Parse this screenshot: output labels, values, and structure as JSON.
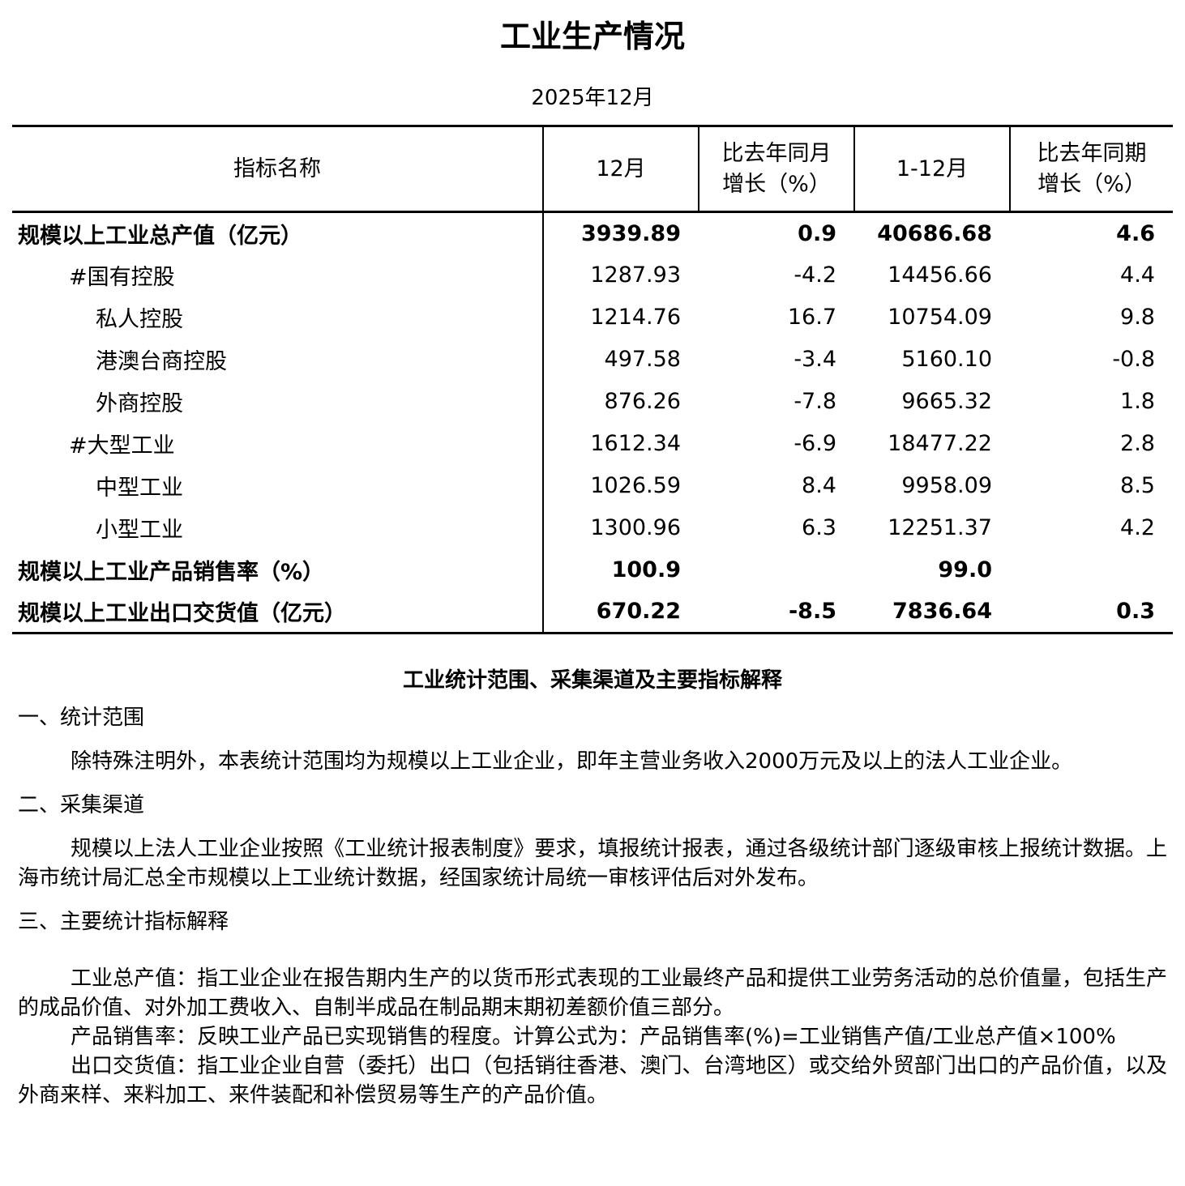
{
  "title": "工业生产情况",
  "subtitle": "2025年12月",
  "table": {
    "headers": [
      "指标名称",
      "12月",
      "比去年同月增长（%）",
      "1-12月",
      "比去年同期增长（%）"
    ],
    "header_lines": {
      "c2a": "比去年同月",
      "c2b": "增长（%）",
      "c4a": "比去年同期",
      "c4b": "增长（%）"
    },
    "rows": [
      {
        "name": "规模以上工业总产值（亿元）",
        "month": "3939.89",
        "month_growth": "0.9",
        "ytd": "40686.68",
        "ytd_growth": "4.6"
      },
      {
        "name": "#国有控股",
        "month": "1287.93",
        "month_growth": "-4.2",
        "ytd": "14456.66",
        "ytd_growth": "4.4"
      },
      {
        "name": "私人控股",
        "month": "1214.76",
        "month_growth": "16.7",
        "ytd": "10754.09",
        "ytd_growth": "9.8"
      },
      {
        "name": "港澳台商控股",
        "month": "497.58",
        "month_growth": "-3.4",
        "ytd": "5160.10",
        "ytd_growth": "-0.8"
      },
      {
        "name": "外商控股",
        "month": "876.26",
        "month_growth": "-7.8",
        "ytd": "9665.32",
        "ytd_growth": "1.8"
      },
      {
        "name": "#大型工业",
        "month": "1612.34",
        "month_growth": "-6.9",
        "ytd": "18477.22",
        "ytd_growth": "2.8"
      },
      {
        "name": "中型工业",
        "month": "1026.59",
        "month_growth": "8.4",
        "ytd": "9958.09",
        "ytd_growth": "8.5"
      },
      {
        "name": "小型工业",
        "month": "1300.96",
        "month_growth": "6.3",
        "ytd": "12251.37",
        "ytd_growth": "4.2"
      },
      {
        "name": "规模以上工业产品销售率（%）",
        "month": "100.9",
        "month_growth": "",
        "ytd": "99.0",
        "ytd_growth": ""
      },
      {
        "name": "规模以上工业出口交货值（亿元）",
        "month": "670.22",
        "month_growth": "-8.5",
        "ytd": "7836.64",
        "ytd_growth": "0.3"
      }
    ]
  },
  "notes": {
    "title": "工业统计范围、采集渠道及主要指标解释",
    "sections": [
      {
        "heading": "一、统计范围",
        "paragraphs": [
          "除特殊注明外，本表统计范围均为规模以上工业企业，即年主营业务收入2000万元及以上的法人工业企业。"
        ]
      },
      {
        "heading": "二、采集渠道",
        "paragraphs": [
          "规模以上法人工业企业按照《工业统计报表制度》要求，填报统计报表，通过各级统计部门逐级审核上报统计数据。上海市统计局汇总全市规模以上工业统计数据，经国家统计局统一审核评估后对外发布。"
        ]
      },
      {
        "heading": "三、主要统计指标解释",
        "paragraphs": [
          "工业总产值：指工业企业在报告期内生产的以货币形式表现的工业最终产品和提供工业劳务活动的总价值量，包括生产的成品价值、对外加工费收入、自制半成品在制品期末期初差额价值三部分。",
          "产品销售率：反映工业产品已实现销售的程度。计算公式为：产品销售率(%)=工业销售产值/工业总产值×100%",
          "出口交货值：指工业企业自营（委托）出口（包括销往香港、澳门、台湾地区）或交给外贸部门出口的产品价值，以及外商来样、来料加工、来件装配和补偿贸易等生产的产品价值。"
        ]
      }
    ]
  }
}
